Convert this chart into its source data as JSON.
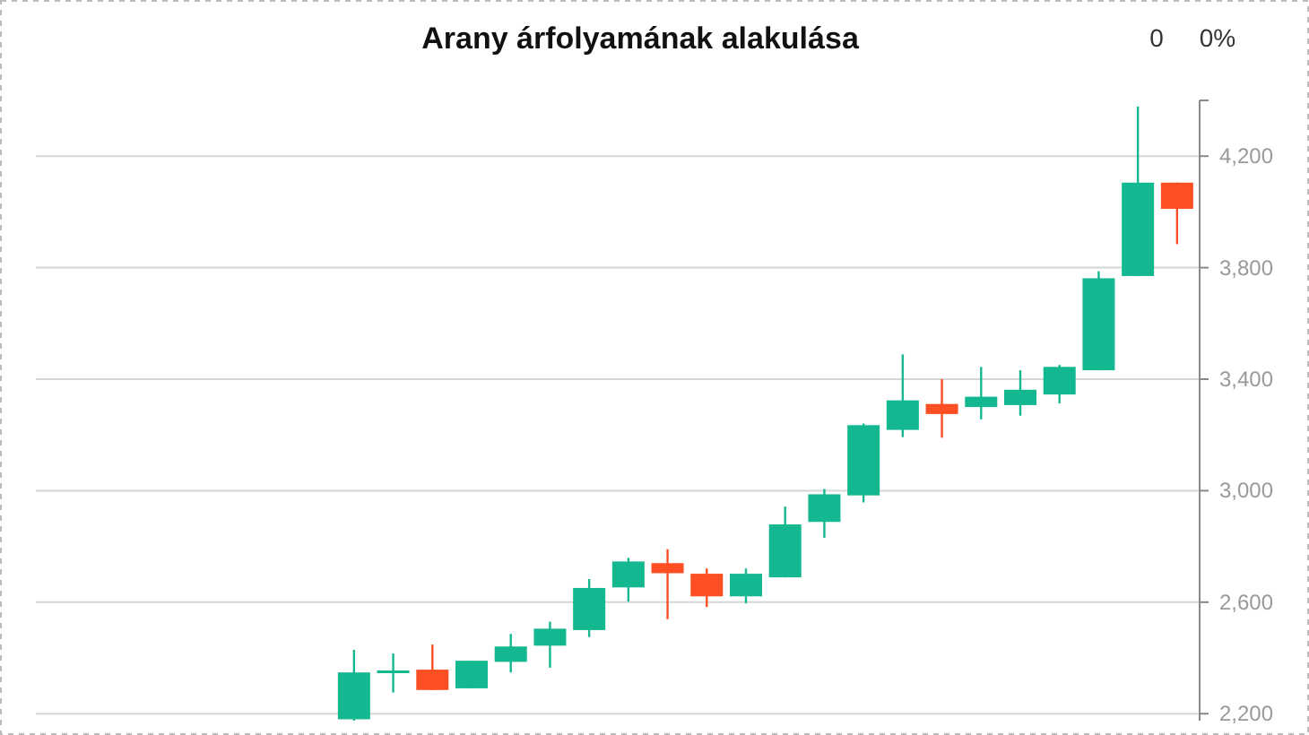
{
  "chart_data": {
    "type": "candlestick",
    "title": "Arany árfolyamának alakulása",
    "annotations": [
      "0",
      "0%"
    ],
    "categories": [
      null,
      null,
      null,
      null,
      null,
      null,
      null,
      null,
      null,
      null,
      null,
      null,
      null,
      null,
      null,
      null,
      null,
      null,
      null,
      null,
      null,
      null,
      null,
      null,
      null,
      null,
      null,
      null,
      null,
      null
    ],
    "ohlc": [
      null,
      null,
      null,
      null,
      null,
      null,
      null,
      null,
      [
        2180,
        2429,
        2175,
        2348
      ],
      [
        2350,
        2416,
        2276,
        2355
      ],
      [
        2358,
        2448,
        2285,
        2285
      ],
      [
        2291,
        2390,
        2291,
        2390
      ],
      [
        2386,
        2486,
        2348,
        2441
      ],
      [
        2444,
        2530,
        2365,
        2505
      ],
      [
        2500,
        2683,
        2475,
        2651
      ],
      [
        2653,
        2759,
        2602,
        2746
      ],
      [
        2740,
        2790,
        2539,
        2704
      ],
      [
        2702,
        2721,
        2583,
        2621
      ],
      [
        2621,
        2721,
        2596,
        2702
      ],
      [
        2689,
        2943,
        2689,
        2879
      ],
      [
        2888,
        3006,
        2831,
        2987
      ],
      [
        2983,
        3241,
        2958,
        3235
      ],
      [
        3218,
        3489,
        3192,
        3324
      ],
      [
        3311,
        3400,
        3190,
        3275
      ],
      [
        3300,
        3444,
        3256,
        3337
      ],
      [
        3307,
        3432,
        3269,
        3362
      ],
      [
        3345,
        3451,
        3313,
        3444
      ],
      [
        3432,
        3787,
        3432,
        3762
      ],
      [
        3770,
        4378,
        3770,
        4105
      ],
      [
        4105,
        4105,
        3884,
        4011
      ]
    ],
    "colors": [
      null,
      null,
      null,
      null,
      null,
      null,
      null,
      null,
      "#14b890",
      "#14b890",
      "#fe4e24",
      "#14b890",
      "#14b890",
      "#14b890",
      "#14b890",
      "#14b890",
      "#fe4e24",
      "#fe4e24",
      "#14b890",
      "#14b890",
      "#14b890",
      "#14b890",
      "#14b890",
      "#fe4e24",
      "#14b890",
      "#14b890",
      "#14b890",
      "#14b890",
      "#14b890",
      "#fe4e24"
    ],
    "ylim": [
      2175,
      4400
    ],
    "yticks": [
      {
        "value": 2200,
        "label": "2,200"
      },
      {
        "value": 2600,
        "label": "2,600"
      },
      {
        "value": 3000,
        "label": "3,000"
      },
      {
        "value": 3400,
        "label": "3,400"
      },
      {
        "value": 3800,
        "label": "3,800"
      },
      {
        "value": 4200,
        "label": "4,200"
      }
    ],
    "grid": true
  }
}
